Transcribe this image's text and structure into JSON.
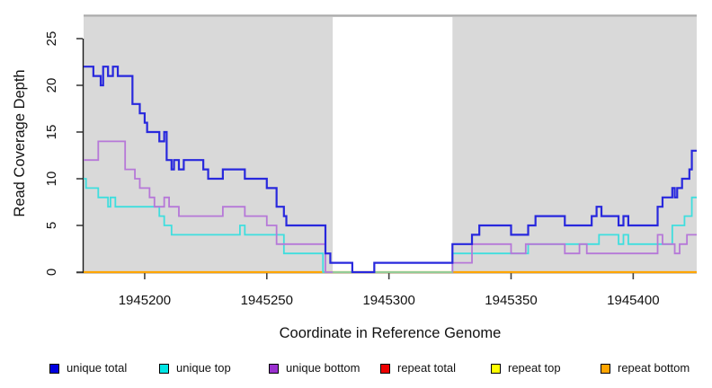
{
  "chart_data": {
    "type": "line",
    "step": true,
    "title": "",
    "xlabel": "Coordinate in Reference Genome",
    "ylabel": "Read Coverage Depth",
    "xlim": [
      1945175,
      1945426
    ],
    "ylim": [
      0,
      27.5
    ],
    "x_ticks": [
      1945200,
      1945250,
      1945300,
      1945350,
      1945400
    ],
    "y_ticks": [
      0,
      5,
      10,
      15,
      20,
      25
    ],
    "grid": false,
    "legend_position": "bottom",
    "panel_color": "#d9d9d9",
    "panel_top_edge_color": "#ababab",
    "axis_color": "#1a1a1a",
    "tick_color": "#404040",
    "gap_region": {
      "from": 1945277,
      "to": 1945326,
      "color": "#ffffff"
    },
    "series": [
      {
        "id": "repeat-total",
        "label": "repeat total",
        "color": "#e60000",
        "width": 2,
        "x": [
          1945175
        ],
        "y": [
          0
        ]
      },
      {
        "id": "repeat-top",
        "label": "repeat top",
        "color": "#ffff00",
        "width": 2,
        "x": [
          1945175
        ],
        "y": [
          0
        ]
      },
      {
        "id": "repeat-bottom",
        "label": "repeat bottom",
        "color": "#ffa500",
        "width": 2.2,
        "x": [
          1945175
        ],
        "y": [
          0
        ]
      },
      {
        "id": "unique-top",
        "label": "unique top",
        "color": "#3fdede",
        "width": 1.8,
        "x": [
          1945175,
          1945176,
          1945181,
          1945185,
          1945186,
          1945188,
          1945206,
          1945208,
          1945211,
          1945239,
          1945241,
          1945257,
          1945273,
          1945326,
          1945357,
          1945386,
          1945394,
          1945396,
          1945398,
          1945416,
          1945421,
          1945424
        ],
        "y": [
          10,
          9,
          8,
          7,
          8,
          7,
          6,
          5,
          4,
          5,
          4,
          2,
          0,
          2,
          3,
          4,
          3,
          4,
          3,
          5,
          6,
          8
        ]
      },
      {
        "id": "unique-bottom",
        "label": "unique bottom",
        "color": "#b678d8",
        "width": 1.8,
        "x": [
          1945175,
          1945181,
          1945192,
          1945196,
          1945198,
          1945202,
          1945204,
          1945208,
          1945210,
          1945214,
          1945232,
          1945241,
          1945250,
          1945254,
          1945274,
          1945326,
          1945334,
          1945350,
          1945356,
          1945372,
          1945378,
          1945381,
          1945410,
          1945412,
          1945417,
          1945419,
          1945422
        ],
        "y": [
          12,
          14,
          11,
          10,
          9,
          8,
          7,
          8,
          7,
          6,
          7,
          6,
          5,
          3,
          0,
          1,
          3,
          2,
          3,
          2,
          3,
          2,
          4,
          3,
          2,
          3,
          4
        ]
      },
      {
        "id": "zero-overlap",
        "label": null,
        "color": "#8fd58f",
        "width": 1.8,
        "x": [
          1945277
        ],
        "y": [
          0
        ],
        "xend": 1945326,
        "note": "pale green zero line visible only inside the white gap region"
      },
      {
        "id": "unique-total",
        "label": "unique total",
        "color": "#2828dd",
        "width": 2.2,
        "x": [
          1945175,
          1945179,
          1945182,
          1945183,
          1945185,
          1945187,
          1945189,
          1945195,
          1945198,
          1945200,
          1945201,
          1945206,
          1945208,
          1945209,
          1945211,
          1945212,
          1945214,
          1945216,
          1945224,
          1945226,
          1945232,
          1945241,
          1945250,
          1945254,
          1945257,
          1945258,
          1945274,
          1945276,
          1945285,
          1945294,
          1945326,
          1945334,
          1945337,
          1945350,
          1945357,
          1945360,
          1945372,
          1945383,
          1945385,
          1945387,
          1945394,
          1945396,
          1945398,
          1945410,
          1945412,
          1945416,
          1945417,
          1945418,
          1945420,
          1945423,
          1945424
        ],
        "y": [
          22,
          21,
          20,
          22,
          21,
          22,
          21,
          18,
          17,
          16,
          15,
          14,
          15,
          12,
          11,
          12,
          11,
          12,
          11,
          10,
          11,
          10,
          9,
          7,
          6,
          5,
          2,
          1,
          0,
          1,
          3,
          4,
          5,
          4,
          5,
          6,
          5,
          6,
          7,
          6,
          5,
          6,
          5,
          7,
          8,
          9,
          8,
          9,
          10,
          11,
          13
        ]
      }
    ],
    "legend": [
      {
        "id": "unique-total",
        "label": "unique total",
        "swatch": "#0000e0"
      },
      {
        "id": "unique-top",
        "label": "unique top",
        "swatch": "#00e5e5"
      },
      {
        "id": "unique-bottom",
        "label": "unique bottom",
        "swatch": "#9a30cf"
      },
      {
        "id": "repeat-total",
        "label": "repeat total",
        "swatch": "#ee0000"
      },
      {
        "id": "repeat-top",
        "label": "repeat top",
        "swatch": "#ffff00"
      },
      {
        "id": "repeat-bottom",
        "label": "repeat bottom",
        "swatch": "#ffa500"
      }
    ]
  }
}
